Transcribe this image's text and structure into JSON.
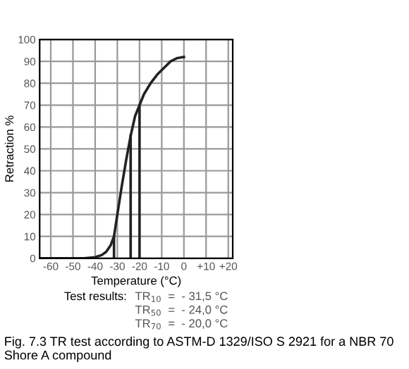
{
  "chart_data": {
    "type": "line",
    "xlabel": "Temperature (°C)",
    "ylabel": "Retraction %",
    "xlim": [
      -65,
      22
    ],
    "xticks": [
      -60,
      -50,
      -40,
      -30,
      -20,
      -10,
      0,
      {
        "value": 10,
        "label": "+10"
      },
      {
        "value": 20,
        "label": "+20"
      }
    ],
    "ylim": [
      0,
      100
    ],
    "yticks": [
      0,
      10,
      20,
      30,
      40,
      50,
      60,
      70,
      80,
      90,
      100
    ],
    "grid": true,
    "series": [
      {
        "color": "#222222",
        "x": [
          -65,
          -45,
          -40,
          -37,
          -35,
          -33,
          -31.5,
          -30,
          -28,
          -26,
          -24,
          -22,
          -20,
          -18,
          -15,
          -12,
          -9,
          -6,
          -3,
          0
        ],
        "values": [
          0,
          0,
          0.5,
          1.5,
          3,
          6,
          10,
          20,
          33,
          45,
          56,
          65,
          70,
          75,
          80,
          84,
          87,
          90,
          91.5,
          92
        ]
      },
      {
        "color": "#222222",
        "x": [
          -31.5,
          -31.5
        ],
        "values": [
          0,
          10
        ]
      },
      {
        "color": "#222222",
        "x": [
          -24,
          -24
        ],
        "values": [
          0,
          56
        ]
      },
      {
        "color": "#222222",
        "x": [
          -20,
          -20
        ],
        "values": [
          0,
          70
        ]
      }
    ],
    "annotations": [
      "Test results:",
      "TR$_{10}$  =  - 31,5 °C",
      "TR$_{50}$  =  - 24,0 °C",
      "TR$_{70}$  =  - 20,0 °C",
      "Fig. 7.3 TR test according to ASTM-D 1329/ISO S 2921 for a NBR 70 Shore A compound"
    ]
  }
}
